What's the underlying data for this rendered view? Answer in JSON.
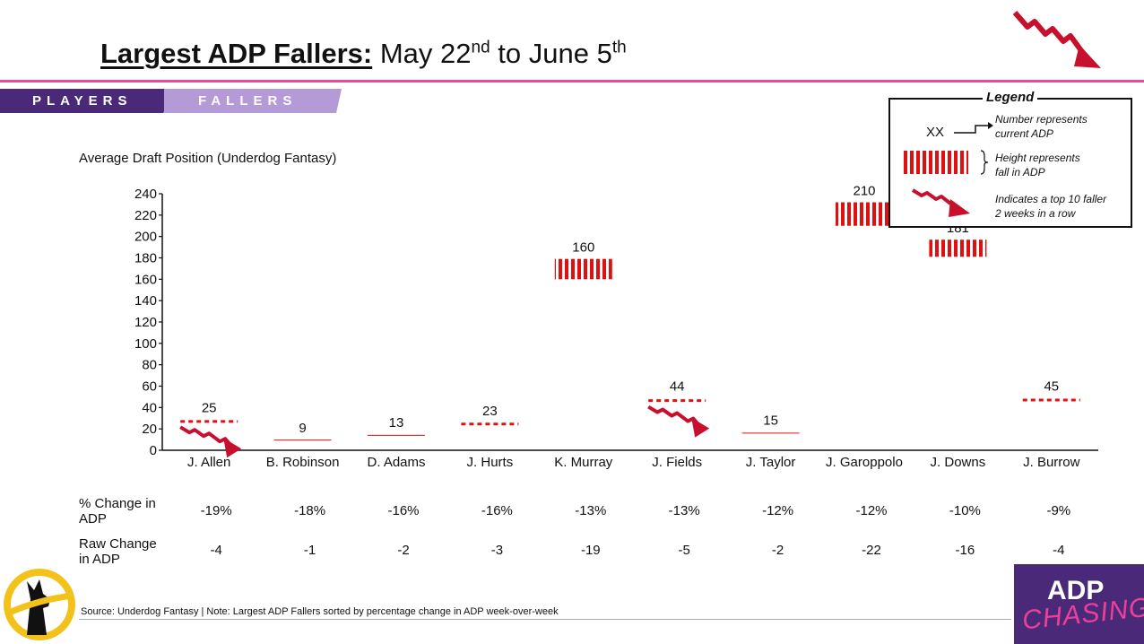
{
  "title": {
    "bold": "Largest ADP Fallers:",
    "part1": "May 22",
    "sup1": "nd",
    "part2": " to June 5",
    "sup2": "th"
  },
  "tabs": [
    {
      "label": "PLAYERS"
    },
    {
      "label": "FALLERS"
    }
  ],
  "chart_subtitle": "Average Draft Position (Underdog Fantasy)",
  "legend": {
    "title": "Legend",
    "xx": "XX",
    "number_text": [
      "Number represents",
      "current ADP"
    ],
    "height_text": [
      "Height represents",
      "fall in ADP"
    ],
    "arrow_text": [
      "Indicates a top 10 faller",
      "2 weeks in a row"
    ]
  },
  "colors": {
    "accent_pink": "#e8489a",
    "bar_red": "#e01010",
    "arrow_red": "#c8102e",
    "purple_dark": "#4a2a78",
    "purple_light": "#b49bd8"
  },
  "chart_data": {
    "type": "bar",
    "categories": [
      "J. Allen",
      "B. Robinson",
      "D. Adams",
      "J. Hurts",
      "K. Murray",
      "J. Fields",
      "J. Taylor",
      "J. Garoppolo",
      "J. Downs",
      "J. Burrow"
    ],
    "current_adp": [
      25,
      9,
      13,
      23,
      160,
      44,
      15,
      210,
      181,
      45
    ],
    "raw_change": [
      -4,
      -1,
      -2,
      -3,
      -19,
      -5,
      -2,
      -22,
      -16,
      -4
    ],
    "two_week_faller": [
      true,
      false,
      false,
      false,
      false,
      true,
      false,
      false,
      false,
      false
    ],
    "y_ticks": [
      "240",
      "220",
      "200",
      "180",
      "160",
      "140",
      "120",
      "100",
      "80",
      "60",
      "40",
      "20",
      "0"
    ],
    "ylim": [
      0,
      240
    ],
    "grid": false
  },
  "table": {
    "pct_label": [
      "% Change in",
      "ADP"
    ],
    "raw_label": [
      "Raw Change",
      "in ADP"
    ],
    "pct": [
      "-19%",
      "-18%",
      "-16%",
      "-16%",
      "-13%",
      "-13%",
      "-12%",
      "-12%",
      "-10%",
      "-9%"
    ],
    "raw": [
      "-4",
      "-1",
      "-2",
      "-3",
      "-19",
      "-5",
      "-2",
      "-22",
      "-16",
      "-4"
    ]
  },
  "footer": "Source: Underdog Fantasy | Note: Largest ADP Fallers sorted by percentage change in ADP week-over-week",
  "brand": {
    "line1": "ADP",
    "line2": "CHASING"
  }
}
